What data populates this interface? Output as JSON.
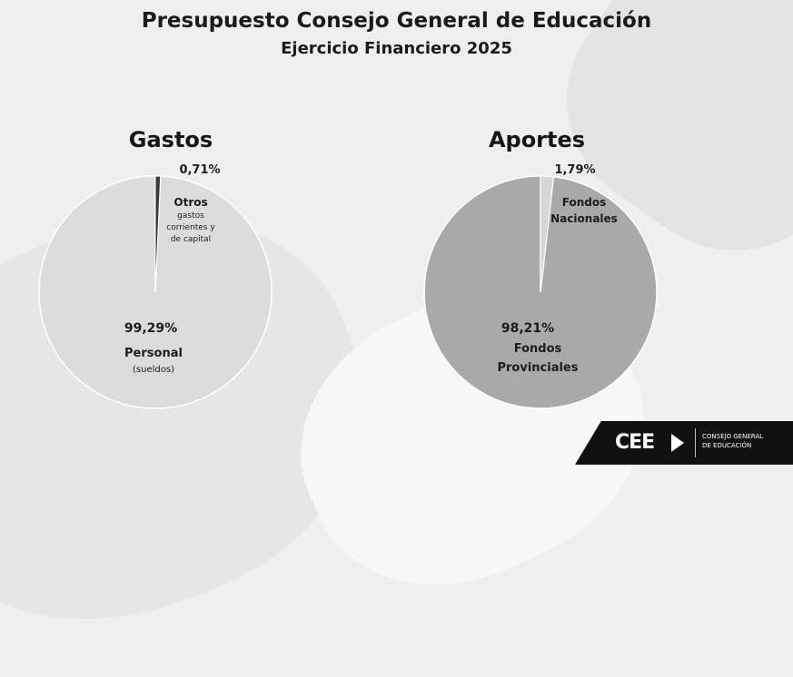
{
  "header": {
    "title": "Presupuesto Consejo General de Educación",
    "subtitle": "Ejercicio Financiero 2025"
  },
  "colors": {
    "gastos_large": "#dcdcdc",
    "gastos_small": "#3a3a3a",
    "aportes_large": "#a9a9a9",
    "aportes_small": "#d6d6d6",
    "logo_bg": "#111111"
  },
  "chart_data": [
    {
      "type": "pie",
      "title": "Gastos",
      "slices": [
        {
          "name": "Personal (sueldos)",
          "value": 99.29,
          "pct_label": "99,29%",
          "label_lines": [
            "Personal",
            "(sueldos)"
          ]
        },
        {
          "name": "Otros gastos corrientes y de capital",
          "value": 0.71,
          "pct_label": "0,71%",
          "label_lines": [
            "Otros",
            "gastos",
            "corrientes y",
            "de capital"
          ]
        }
      ]
    },
    {
      "type": "pie",
      "title": "Aportes",
      "slices": [
        {
          "name": "Fondos Provinciales",
          "value": 98.21,
          "pct_label": "98,21%",
          "label_lines": [
            "Fondos",
            "Provinciales"
          ]
        },
        {
          "name": "Fondos Nacionales",
          "value": 1.79,
          "pct_label": "1,79%",
          "label_lines": [
            "Fondos",
            "Nacionales"
          ]
        }
      ]
    }
  ],
  "logo": {
    "mark": "CEE",
    "text_line1": "CONSEJO GENERAL",
    "text_line2": "DE EDUCACIÓN"
  }
}
